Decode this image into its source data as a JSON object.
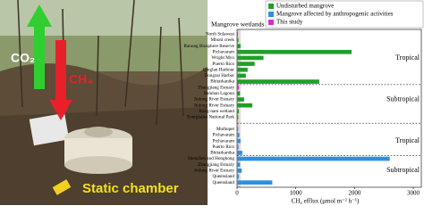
{
  "photo": {
    "co2": "CO₂",
    "ch4": "CH₄",
    "chamber": "Static chamber"
  },
  "chart_data": {
    "type": "bar",
    "orientation": "horizontal",
    "header": "Mangrove wetlands",
    "xlabel": "CH₄ efflux (μmol m⁻² h⁻¹)",
    "categories": [
      "North Sulawesi",
      "Mboni creek",
      "Ranong Biosphere Reserve",
      "Pichavaram",
      "Wright Myo",
      "Puerto Rico",
      "Qinglan Harbour",
      "Dongzai Harbor",
      "Bhitarkanika",
      "Zhangjiang Estuary",
      "Baluhan Lagoon",
      "Jiulong River Estuary",
      "Jiulong River Estuary",
      "Kang-nam wetland",
      "Everglades National Park",
      null,
      "Muthupet",
      "Pichavaram",
      "Pichavaram",
      "Puerto Rico",
      "Bhitarkanika",
      "Shenzhen and Hongkong",
      "Zhangjiang Estuary",
      "Jiulong River Estuary",
      "Queensland",
      "Queensland"
    ],
    "series": [
      {
        "name": "Undisturbed mangrove",
        "color": "#1fa02a",
        "values": [
          15,
          25,
          60,
          1950,
          450,
          300,
          180,
          150,
          1400,
          null,
          50,
          120,
          260,
          30,
          20,
          null,
          null,
          null,
          null,
          null,
          null,
          null,
          null,
          null,
          null,
          null
        ]
      },
      {
        "name": "Mangrove affected by anthropogenic activities",
        "color": "#2e8fe0",
        "values": [
          null,
          null,
          null,
          null,
          null,
          null,
          null,
          null,
          null,
          null,
          null,
          null,
          null,
          null,
          null,
          null,
          20,
          40,
          60,
          25,
          90,
          2600,
          50,
          80,
          30,
          600
        ]
      },
      {
        "name": "This study",
        "color": "#d62ad6",
        "values": [
          null,
          null,
          null,
          null,
          null,
          null,
          null,
          null,
          null,
          30,
          null,
          null,
          null,
          null,
          null,
          null,
          null,
          null,
          null,
          null,
          null,
          null,
          null,
          null,
          null,
          null
        ]
      }
    ],
    "annotations": [
      "Tropical",
      "Subtropical",
      "Tropical",
      "Subtropical"
    ],
    "xlim": [
      0,
      3000
    ],
    "xticks": [
      0,
      1000,
      2000,
      3000
    ],
    "legend": "top-right"
  }
}
